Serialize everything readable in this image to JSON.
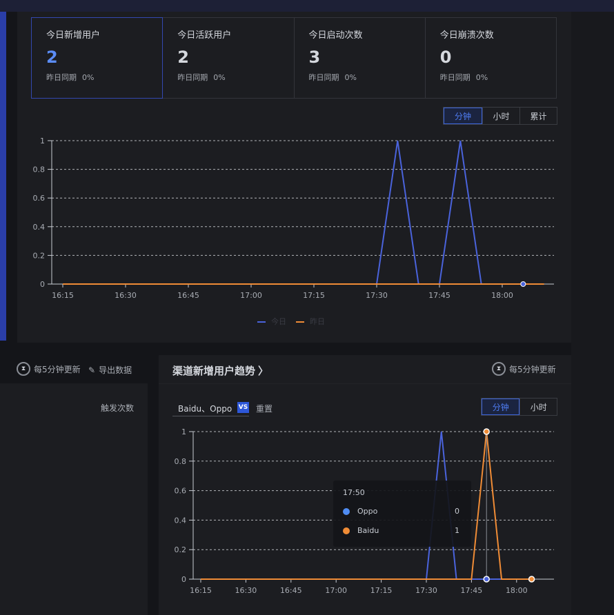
{
  "stats": [
    {
      "title": "今日新增用户",
      "value": "2",
      "compare_label": "昨日同期",
      "compare_value": "0%"
    },
    {
      "title": "今日活跃用户",
      "value": "2",
      "compare_label": "昨日同期",
      "compare_value": "0%"
    },
    {
      "title": "今日启动次数",
      "value": "3",
      "compare_label": "昨日同期",
      "compare_value": "0%"
    },
    {
      "title": "今日崩溃次数",
      "value": "0",
      "compare_label": "昨日同期",
      "compare_value": "0%"
    }
  ],
  "top_chart": {
    "tabs": [
      "分钟",
      "小时",
      "累计"
    ],
    "active_tab": "分钟",
    "legend": [
      "今日",
      "昨日"
    ]
  },
  "left_panel": {
    "refresh_label": "每5分钟更新",
    "export_label": "导出数据",
    "metric_label": "触发次数"
  },
  "channel_panel": {
    "title": "渠道新增用户趋势",
    "refresh_label": "每5分钟更新",
    "selected_channels": "Baidu、Oppo",
    "vs_label": "VS",
    "reset_label": "重置",
    "tabs": [
      "分钟",
      "小时"
    ],
    "active_tab": "分钟",
    "tooltip": {
      "time": "17:50",
      "rows": [
        {
          "name": "Oppo",
          "value": "0",
          "color": "#4f8cf2"
        },
        {
          "name": "Baidu",
          "value": "1",
          "color": "#f08c36"
        }
      ]
    }
  },
  "colors": {
    "accent": "#4f7df3",
    "today": "#4a63dc",
    "yesterday": "#f08c36"
  },
  "chart_data": [
    {
      "type": "line",
      "x_ticks": [
        "16:15",
        "16:30",
        "16:45",
        "17:00",
        "17:15",
        "17:30",
        "17:45",
        "18:00"
      ],
      "y_ticks": [
        "0",
        "0.2",
        "0.4",
        "0.6",
        "0.8",
        "1"
      ],
      "ylim": [
        0,
        1
      ],
      "x_range_minutes": [
        "16:15",
        "18:10"
      ],
      "grid": true,
      "legend_position": "bottom",
      "series": [
        {
          "name": "今日",
          "color": "#4a63dc",
          "points": [
            [
              "16:15",
              0
            ],
            [
              "17:30",
              0
            ],
            [
              "17:35",
              1
            ],
            [
              "17:40",
              0
            ],
            [
              "17:45",
              0
            ],
            [
              "17:50",
              1
            ],
            [
              "17:55",
              0
            ],
            [
              "18:05",
              0
            ]
          ]
        },
        {
          "name": "昨日",
          "color": "#f08c36",
          "points": [
            [
              "16:15",
              0
            ],
            [
              "18:10",
              0
            ]
          ]
        }
      ]
    },
    {
      "type": "line",
      "x_ticks": [
        "16:15",
        "16:30",
        "16:45",
        "17:00",
        "17:15",
        "17:30",
        "17:45",
        "18:00"
      ],
      "y_ticks": [
        "0",
        "0.2",
        "0.4",
        "0.6",
        "0.8",
        "1"
      ],
      "ylim": [
        0,
        1
      ],
      "grid": true,
      "legend_position": "bottom",
      "series": [
        {
          "name": "Oppo",
          "color": "#4a63dc",
          "points": [
            [
              "16:15",
              0
            ],
            [
              "17:30",
              0
            ],
            [
              "17:35",
              1
            ],
            [
              "17:40",
              0
            ],
            [
              "17:45",
              0
            ],
            [
              "17:50",
              0
            ],
            [
              "18:05",
              0
            ]
          ]
        },
        {
          "name": "Baidu",
          "color": "#f08c36",
          "points": [
            [
              "16:15",
              0
            ],
            [
              "17:45",
              0
            ],
            [
              "17:50",
              1
            ],
            [
              "17:55",
              0
            ],
            [
              "18:05",
              0
            ]
          ]
        }
      ]
    }
  ]
}
